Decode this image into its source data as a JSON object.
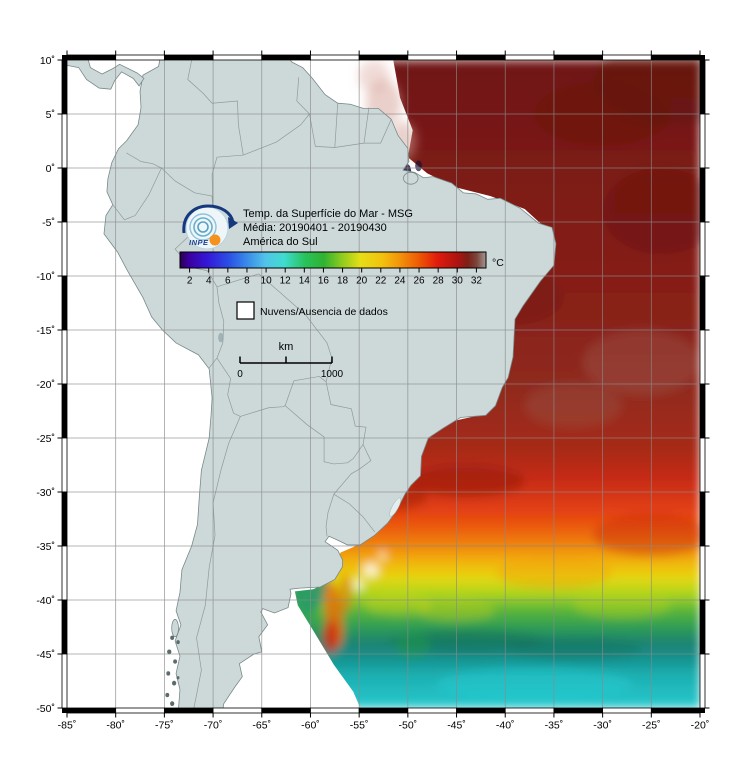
{
  "map": {
    "annotations": {
      "title_line1": "Temp. da Superfície do Mar - MSG",
      "title_line2": "Média: 20190401 - 20190430",
      "title_line3": "América do Sul",
      "logo_text": "INPE"
    },
    "colorbar": {
      "unit_label": "°C",
      "tick_labels": [
        "2",
        "4",
        "6",
        "8",
        "10",
        "12",
        "14",
        "16",
        "18",
        "20",
        "22",
        "24",
        "26",
        "28",
        "30",
        "32"
      ],
      "stops": [
        {
          "o": 0.0,
          "c": "#2b0050"
        },
        {
          "o": 0.03,
          "c": "#3a00a0"
        },
        {
          "o": 0.09,
          "c": "#3418d8"
        },
        {
          "o": 0.16,
          "c": "#2a50e4"
        },
        {
          "o": 0.22,
          "c": "#3a8ce8"
        },
        {
          "o": 0.28,
          "c": "#52c4e8"
        },
        {
          "o": 0.34,
          "c": "#40dcd0"
        },
        {
          "o": 0.41,
          "c": "#28c25a"
        },
        {
          "o": 0.47,
          "c": "#30b232"
        },
        {
          "o": 0.53,
          "c": "#90cc1e"
        },
        {
          "o": 0.59,
          "c": "#e6de16"
        },
        {
          "o": 0.66,
          "c": "#f2c20e"
        },
        {
          "o": 0.72,
          "c": "#f2920a"
        },
        {
          "o": 0.78,
          "c": "#ee5a04"
        },
        {
          "o": 0.84,
          "c": "#e01c0c"
        },
        {
          "o": 0.91,
          "c": "#aa1410"
        },
        {
          "o": 0.94,
          "c": "#7c1f16"
        },
        {
          "o": 0.97,
          "c": "#7c463c"
        },
        {
          "o": 1.0,
          "c": "#a39a94"
        }
      ]
    },
    "legend": {
      "no_data_label": "Nuvens/Ausencia de dados"
    },
    "scale_bar": {
      "unit_label": "km",
      "start_label": "0",
      "end_label": "1000"
    },
    "axes": {
      "lat_tick_labels": [
        "10˚",
        "5˚",
        "0˚",
        "-5˚",
        "-10˚",
        "-15˚",
        "-20˚",
        "-25˚",
        "-30˚",
        "-35˚",
        "-40˚",
        "-45˚",
        "-50˚"
      ],
      "lon_tick_labels": [
        "-85˚",
        "-80˚",
        "-75˚",
        "-70˚",
        "-65˚",
        "-60˚",
        "-55˚",
        "-50˚",
        "-45˚",
        "-40˚",
        "-35˚",
        "-30˚",
        "-25˚",
        "-20˚"
      ]
    },
    "land_color": "#cdd9d9"
  }
}
